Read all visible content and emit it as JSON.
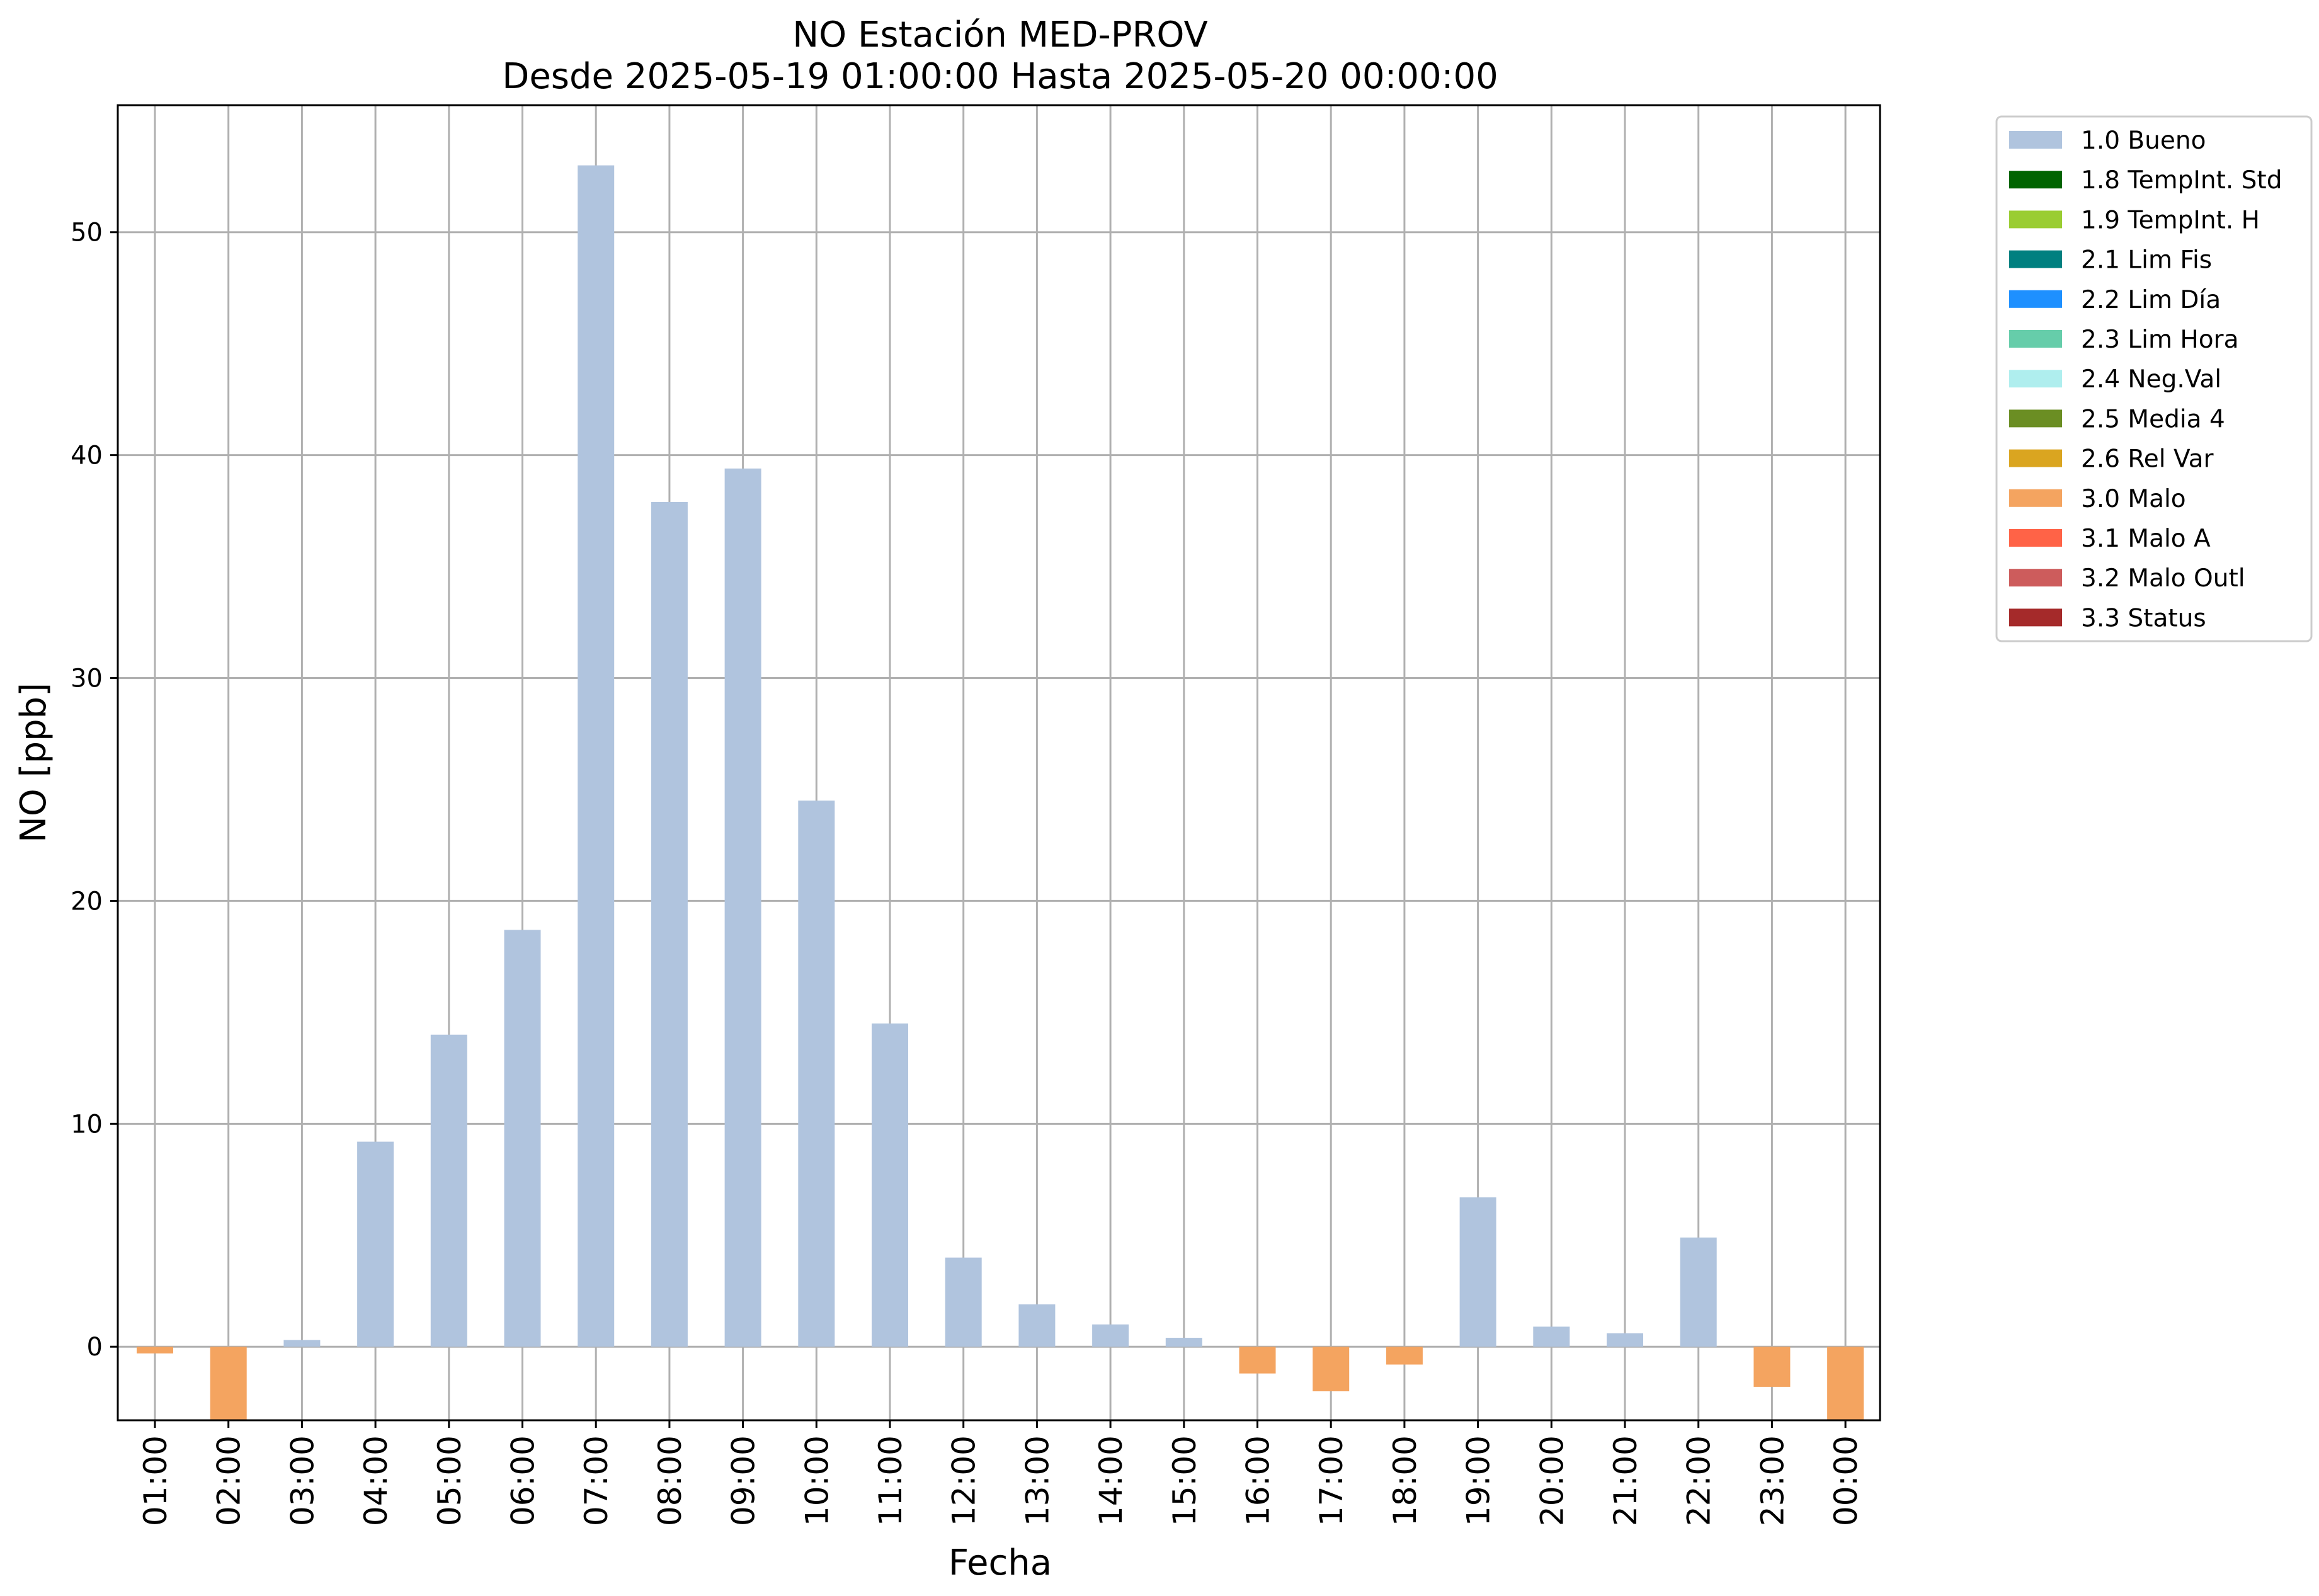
{
  "chart_data": {
    "type": "bar",
    "title": "NO Estación MED-PROV",
    "subtitle": "Desde 2025-05-19 01:00:00 Hasta 2025-05-20 00:00:00",
    "xlabel": "Fecha",
    "ylabel": "NO [ppb]",
    "ylim": [
      -3.3,
      55.7
    ],
    "yticks": [
      0,
      10,
      20,
      30,
      40,
      50
    ],
    "grid": true,
    "legend_position": "outside top-right",
    "categories": [
      "01:00",
      "02:00",
      "03:00",
      "04:00",
      "05:00",
      "06:00",
      "07:00",
      "08:00",
      "09:00",
      "10:00",
      "11:00",
      "12:00",
      "13:00",
      "14:00",
      "15:00",
      "16:00",
      "17:00",
      "18:00",
      "19:00",
      "20:00",
      "21:00",
      "22:00",
      "23:00",
      "00:00"
    ],
    "values": [
      -0.3,
      -3.5,
      0.3,
      9.2,
      14.0,
      18.7,
      53.0,
      37.9,
      39.4,
      24.5,
      14.5,
      4.0,
      1.9,
      1.0,
      0.4,
      -1.2,
      -2.0,
      -0.8,
      6.7,
      0.9,
      0.6,
      4.9,
      -1.8,
      -3.3
    ],
    "flags": [
      "3.0 Malo",
      "3.0 Malo",
      "1.0 Bueno",
      "1.0 Bueno",
      "1.0 Bueno",
      "1.0 Bueno",
      "1.0 Bueno",
      "1.0 Bueno",
      "1.0 Bueno",
      "1.0 Bueno",
      "1.0 Bueno",
      "1.0 Bueno",
      "1.0 Bueno",
      "1.0 Bueno",
      "1.0 Bueno",
      "3.0 Malo",
      "3.0 Malo",
      "3.0 Malo",
      "1.0 Bueno",
      "1.0 Bueno",
      "1.0 Bueno",
      "1.0 Bueno",
      "3.0 Malo",
      "3.0 Malo"
    ],
    "legend": [
      {
        "label": "1.0 Bueno",
        "color": "#b0c4de"
      },
      {
        "label": "1.8 TempInt. Std",
        "color": "#006400"
      },
      {
        "label": "1.9 TempInt. H",
        "color": "#9acd32"
      },
      {
        "label": "2.1 Lim Fis",
        "color": "#008080"
      },
      {
        "label": "2.2 Lim Día",
        "color": "#1e90ff"
      },
      {
        "label": "2.3 Lim Hora",
        "color": "#66cdaa"
      },
      {
        "label": "2.4 Neg.Val",
        "color": "#afeeee"
      },
      {
        "label": "2.5 Media 4",
        "color": "#6b8e23"
      },
      {
        "label": "2.6 Rel Var",
        "color": "#daa520"
      },
      {
        "label": "3.0 Malo",
        "color": "#f4a460"
      },
      {
        "label": "3.1 Malo A",
        "color": "#ff6347"
      },
      {
        "label": "3.2 Malo Outl",
        "color": "#cd5c5c"
      },
      {
        "label": "3.3 Status",
        "color": "#a52a2a"
      }
    ]
  }
}
